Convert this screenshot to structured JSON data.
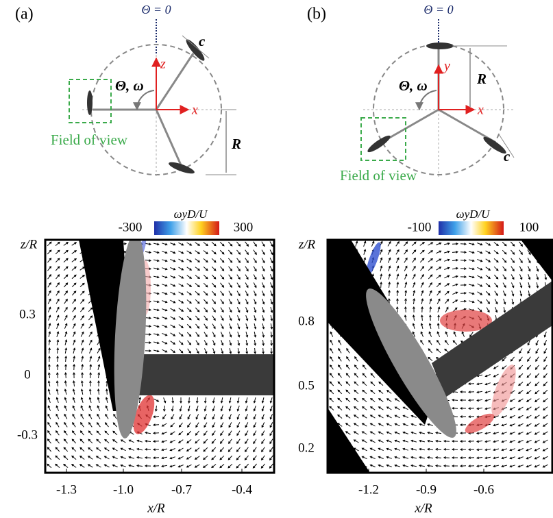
{
  "panels": [
    {
      "label": "(a)",
      "theta_zero": "Θ = 0",
      "chord": "c",
      "axis_up": "z",
      "axis_right": "x",
      "rotation": "Θ, ω",
      "field_of_view": "Field of view",
      "radius": "R",
      "plot": {
        "colorbar_title": "ωyD/U",
        "colorbar_min": "-300",
        "colorbar_max": "300",
        "y_label": "z/R",
        "x_label": "x/R",
        "xticks": [
          "-1.3",
          "-1.0",
          "-0.7",
          "-0.4"
        ],
        "yticks": [
          "0.3",
          "0",
          "-0.3"
        ]
      }
    },
    {
      "label": "(b)",
      "theta_zero": "Θ = 0",
      "chord": "c",
      "axis_up": "y",
      "axis_right": "x",
      "rotation": "Θ, ω",
      "field_of_view": "Field of view",
      "radius": "R",
      "plot": {
        "colorbar_title": "ωyD/U",
        "colorbar_min": "-100",
        "colorbar_max": "100",
        "y_label": "z/R",
        "x_label": "x/R",
        "xticks": [
          "-1.2",
          "-0.9",
          "-0.6"
        ],
        "yticks": [
          "0.8",
          "0.5",
          "0.2"
        ]
      }
    }
  ]
}
